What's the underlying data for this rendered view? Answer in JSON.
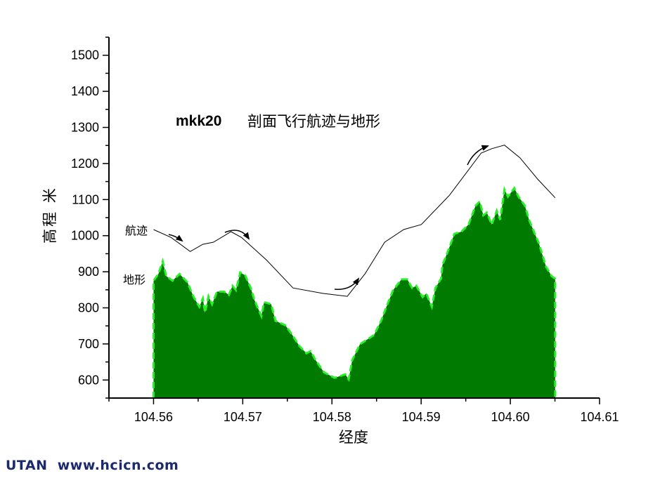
{
  "chart_data": {
    "type": "area",
    "title_bold": "mkk20",
    "title": "剖面飞行航迹与地形",
    "xlabel": "经度",
    "ylabel": "高程 米",
    "xlim": [
      104.555,
      104.61
    ],
    "ylim": [
      550,
      1550
    ],
    "x_ticks": [
      "104.56",
      "104.57",
      "104.58",
      "104.59",
      "104.60",
      "104.61"
    ],
    "y_ticks": [
      "600",
      "700",
      "800",
      "900",
      "1000",
      "1100",
      "1200",
      "1300",
      "1400",
      "1500"
    ],
    "grid": false,
    "colors": {
      "terrain_fill": "#007a00",
      "terrain_edge": "#2af02a",
      "track": "#000000"
    },
    "series": [
      {
        "name": "航迹",
        "type": "line",
        "x": [
          104.56,
          104.56197,
          104.56411,
          104.56553,
          104.56671,
          104.56869,
          104.56987,
          104.57264,
          104.57564,
          104.57896,
          104.58172,
          104.5837,
          104.58591,
          104.58804,
          104.59002,
          104.59318,
          104.59673,
          104.59791,
          104.59934,
          104.60107,
          104.60305,
          104.60502
        ],
        "y": [
          1017,
          995,
          956,
          976,
          982,
          1011,
          995,
          933,
          855,
          840,
          832,
          894,
          982,
          1017,
          1031,
          1112,
          1229,
          1241,
          1251,
          1216,
          1157,
          1105
        ]
      },
      {
        "name": "地形",
        "type": "area",
        "x": [
          104.56,
          104.56055,
          104.56103,
          104.56142,
          104.56213,
          104.56292,
          104.56379,
          104.5645,
          104.56513,
          104.56553,
          104.56577,
          104.56616,
          104.56656,
          104.56711,
          104.5679,
          104.56845,
          104.56885,
          104.56924,
          104.56972,
          104.57027,
          104.5709,
          104.5713,
          104.57209,
          104.5724,
          104.57319,
          104.57367,
          104.57477,
          104.57556,
          104.57635,
          104.57714,
          104.57761,
          104.57817,
          104.57912,
          104.5803,
          104.58149,
          104.58188,
          104.58227,
          104.58314,
          104.58472,
          104.58551,
          104.58622,
          104.58686,
          104.5878,
          104.58844,
          104.58899,
          104.58946,
          104.59017,
          104.59057,
          104.5912,
          104.5916,
          104.59223,
          104.59239,
          104.59294,
          104.59373,
          104.59452,
          104.59531,
          104.5961,
          104.59657,
          104.59697,
          104.59736,
          104.59791,
          104.59847,
          104.59886,
          104.59934,
          104.59973,
          104.60044,
          104.60092,
          104.60163,
          104.6021,
          104.60321,
          104.604,
          104.60463,
          104.60502
        ],
        "y": [
          875,
          894,
          929,
          888,
          875,
          894,
          871,
          830,
          803,
          826,
          787,
          832,
          810,
          845,
          845,
          836,
          861,
          849,
          898,
          890,
          855,
          822,
          777,
          816,
          810,
          764,
          752,
          725,
          694,
          674,
          680,
          655,
          621,
          606,
          616,
          602,
          655,
          699,
          725,
          764,
          810,
          849,
          879,
          879,
          855,
          861,
          830,
          840,
          803,
          855,
          881,
          919,
          953,
          1005,
          1011,
          1031,
          1083,
          1095,
          1056,
          1064,
          1031,
          1069,
          1044,
          1128,
          1108,
          1132,
          1108,
          1083,
          1044,
          978,
          914,
          888,
          881
        ]
      }
    ],
    "annotations": {
      "track_label": "航迹",
      "terrain_label": "地形"
    }
  },
  "watermark": "UTAN  www.hcicn.com"
}
